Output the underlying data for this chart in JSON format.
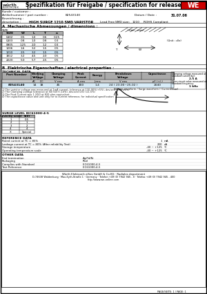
{
  "title": "Spezifikation für Freigabe / specification for release",
  "logo_text": "würth",
  "logo_sub": "ELEKTRONIK",
  "customer_label": "Kunde / customer :",
  "part_label": "Artikelnummer / part number :",
  "part_number": "82543140",
  "date_label": "Datum / Date :",
  "date_value": "31.07.06",
  "desc_label1": "Bezeichnung :",
  "desc_label2": "description :",
  "description": "HIGH SURGE 1210 SMD VARISTOR",
  "lead_free": "Lead Free",
  "smd_label": "SMD size:",
  "smd_size": "1210",
  "rohs": "ROHS Compliant",
  "section_a": "A  Mechanische Abmessungen / dimensions :",
  "size_label": "SIZE",
  "unit_label": "(Unit : mm)",
  "table_a_headers": [
    "SIZE",
    "W",
    "L",
    "T",
    "a"
  ],
  "table_a_rows": [
    [
      "0402",
      "0.5",
      "1.0",
      "0.6",
      "0.25"
    ],
    [
      "0403",
      "0.8",
      "1.0",
      "0.8",
      "0.3"
    ],
    [
      "0805",
      "1.25",
      "2.0",
      "1.2",
      "0.3"
    ],
    [
      "1206",
      "1.6",
      "3.2",
      "1.5",
      "0.5"
    ],
    [
      "1210",
      "2.5",
      "3.2",
      "1.5",
      "0.5"
    ],
    [
      "1812",
      "3.2",
      "4.5",
      "2.0",
      "0.5"
    ],
    [
      "2220",
      "5.0",
      "5.7",
      "2.5",
      "0.5"
    ]
  ],
  "section_b": "B  Elektrische Eigenschaften / electrical properties :",
  "tech_data_label": "TECHNICAL DATA",
  "tech_row": [
    "82543140",
    "14",
    "18",
    "45",
    "400",
    "1.4",
    "24 ( 23.00~25.02 )",
    "2040"
  ],
  "tech_col_headers": [
    "Part Number",
    "Working\nVoltage",
    "Clamping\nVoltage",
    "Peak\nCurrent",
    "Energy",
    "Breakdown\nVoltage",
    "Capacitance"
  ],
  "tech_sub_headers": [
    "AC",
    "DC",
    "V rms",
    "A rms",
    "J rms",
    "V rms",
    "pF (+/-)"
  ],
  "footnotes": [
    "1) The varistor voltage was measured at 1mA current, tolerance at 120-90%(+5%), devised (25) (±1%)",
    "2) The Clamping voltage tolerance at 50/ 60(+/-10%), devised (25) (±1.5%)",
    "3) The Peak Current was 1.2/50 at 820 ohm equivalent.",
    "4) The capacitance value and unit only for to current reference, for individual specification"
  ],
  "footnote_vals": [
    "Clamping voltage measured at standard current(by):",
    "Open circuit value measured at standard frequency:",
    "  "
  ],
  "footnote_right": [
    "2.5 A",
    "1 kHz"
  ],
  "surge_label": "SURGE LEVEL IEC61000-4-5",
  "surge_headers": [
    "Severity Level",
    "(kV)"
  ],
  "surge_rows": [
    [
      "1",
      "0.5"
    ],
    [
      "2",
      "1"
    ],
    [
      "3",
      "2"
    ],
    [
      "4",
      "4"
    ],
    [
      "X",
      "Special"
    ]
  ],
  "waveform_label": "Voltage waveform / Surge waveform / (Current flow)",
  "waveform_ticks": [
    "0",
    "Ts",
    "T2"
  ],
  "ref_data_label": "REFERENCE DATA",
  "ref_rows": [
    [
      "Rated current at TC = 85%",
      "1",
      "mA"
    ],
    [
      "Leakage current at TC = 80% (After reliability Test)",
      "200",
      "uA"
    ],
    [
      "Storage temperature",
      "-40 ~ +125",
      "°C"
    ],
    [
      "Operating temperature scale",
      "-40 ~ +125",
      "°C"
    ]
  ],
  "other_label": "OTHER DATA",
  "other_rows": [
    [
      "End termination",
      "Ag/Pd/Ni"
    ],
    [
      "Packaging",
      "Reel"
    ],
    [
      "Complies with Standard",
      "IEC61000-4-5"
    ],
    [
      "Test Reference",
      "IEC61000-4-5"
    ]
  ],
  "footer1": "Würth Elektronik eiSos GmbH & Co.KG · Radiales department",
  "footer2": "D-74638 Waldenburg · Max-Eyth-Straße 1 · Germany · Telefon +49 (0) 7942 945 - 0 · Telefax +49 (0) 7942 945 - 400",
  "footer3": "http://www.we-online.com",
  "page_ref": "PAGE/SEITE: 1 / PAGE: 1",
  "bg_color": "#ffffff",
  "gray_header": "#aaaaaa",
  "light_blue": "#cce0f0",
  "light_gray": "#dddddd"
}
